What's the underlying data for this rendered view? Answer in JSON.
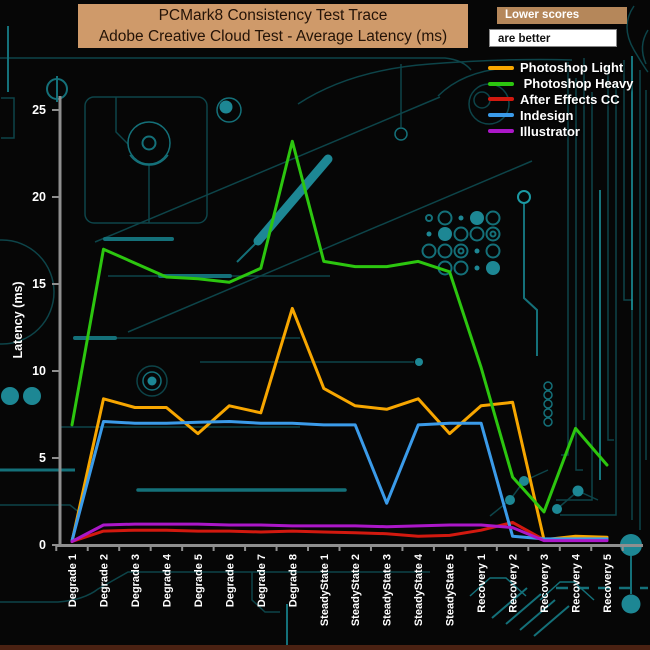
{
  "title": {
    "line1": "PCMark8 Consistency Test Trace",
    "line2": "Adobe Creative Cloud Test -  Average Latency (ms)"
  },
  "note": {
    "line1": "Lower scores",
    "line2": "are better"
  },
  "chart_data": {
    "type": "line",
    "title": "PCMark8 Consistency Test Trace — Adobe Creative Cloud Test - Average Latency (ms)",
    "xlabel": "",
    "ylabel": "Latency (ms)",
    "ylim": [
      0,
      25
    ],
    "yticks": [
      0,
      5,
      10,
      15,
      20,
      25
    ],
    "grid": false,
    "legend_position": "top-right",
    "categories": [
      "Degrade 1",
      "Degrade 2",
      "Degrade 3",
      "Degrade 4",
      "Degrade 5",
      "Degrade 6",
      "Degrade 7",
      "Degrade 8",
      "SteadyState 1",
      "SteadyState 2",
      "SteadyState 3",
      "SteadyState 4",
      "SteadyState 5",
      "Recovery 1",
      "Recovery 2",
      "Recovery 3",
      "Recovery 4",
      "Recovery 5"
    ],
    "series": [
      {
        "name": "Photoshop Light",
        "color": "#F7A600",
        "values": [
          0.2,
          8.4,
          7.9,
          7.9,
          6.4,
          8.0,
          7.6,
          13.6,
          9.0,
          8.0,
          7.8,
          8.4,
          6.4,
          8.0,
          8.2,
          0.3,
          0.5,
          0.45
        ]
      },
      {
        "name": " Photoshop Heavy",
        "color": "#2CC60F",
        "values": [
          6.9,
          17.0,
          16.2,
          15.4,
          15.3,
          15.1,
          15.9,
          23.2,
          16.3,
          16.0,
          16.0,
          16.3,
          15.7,
          10.2,
          3.9,
          1.9,
          6.7,
          4.6
        ]
      },
      {
        "name": "After Effects CC",
        "color": "#D2190F",
        "values": [
          0.2,
          0.8,
          0.85,
          0.85,
          0.8,
          0.8,
          0.75,
          0.8,
          0.75,
          0.7,
          0.65,
          0.5,
          0.55,
          0.85,
          1.3,
          0.3,
          0.3,
          0.3
        ]
      },
      {
        "name": "Indesign",
        "color": "#3B9BE9",
        "values": [
          0.25,
          7.1,
          7.0,
          7.0,
          7.05,
          7.1,
          7.0,
          7.0,
          6.9,
          6.9,
          2.4,
          6.9,
          7.0,
          7.0,
          0.5,
          0.35,
          0.35,
          0.35
        ]
      },
      {
        "name": "Illustrator",
        "color": "#AB17C8",
        "values": [
          0.2,
          1.15,
          1.2,
          1.2,
          1.2,
          1.15,
          1.15,
          1.1,
          1.1,
          1.1,
          1.05,
          1.1,
          1.15,
          1.15,
          1.0,
          0.25,
          0.25,
          0.25
        ]
      }
    ]
  },
  "colors": {
    "background": "#060606",
    "title_bg": "#cf9a6a",
    "note_top_bg": "#b5875a",
    "note_bottom_bg": "#ffffff",
    "axis": "#8f8f8f",
    "bottom_strip": "#4a2112",
    "circuit_dim": "#0d4449",
    "circuit_mid": "#147079",
    "circuit_bright": "#1b99a3",
    "circuit_fill": "#1d8794"
  }
}
